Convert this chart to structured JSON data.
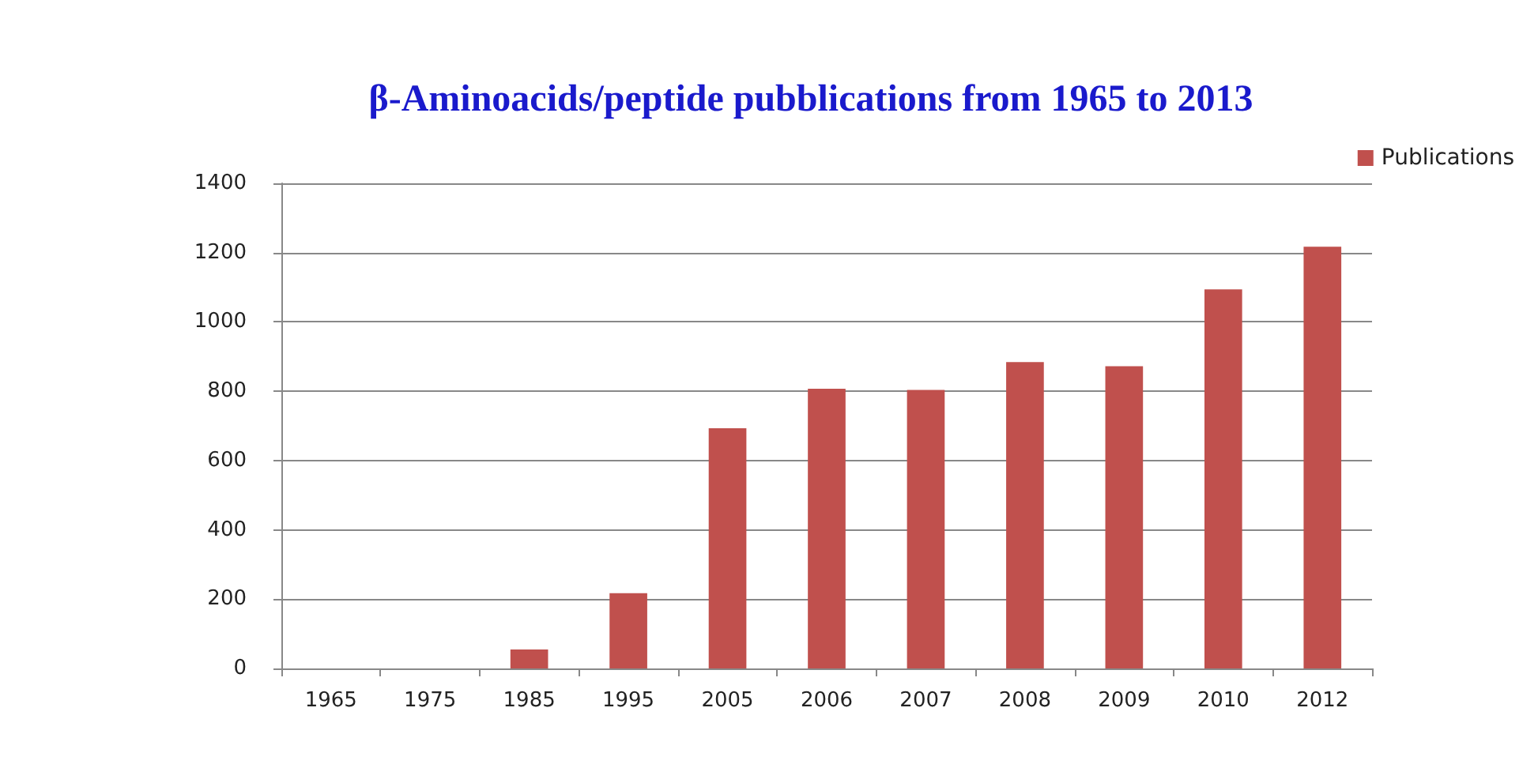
{
  "chart_data": {
    "type": "bar",
    "title": "β-Aminoacids/peptide pubblications from 1965 to 2013",
    "categories": [
      "1965",
      "1975",
      "1985",
      "1995",
      "2005",
      "2006",
      "2007",
      "2008",
      "2009",
      "2010",
      "2012"
    ],
    "series": [
      {
        "name": "Publications",
        "color": "#c0504d",
        "values": [
          0,
          0,
          55,
          217,
          693,
          807,
          804,
          884,
          872,
          1094,
          1217
        ]
      }
    ],
    "ylim": [
      0,
      1400
    ],
    "yticks": [
      0,
      200,
      400,
      600,
      800,
      1000,
      1200,
      1400
    ],
    "grid": "y",
    "legend": "top right"
  }
}
